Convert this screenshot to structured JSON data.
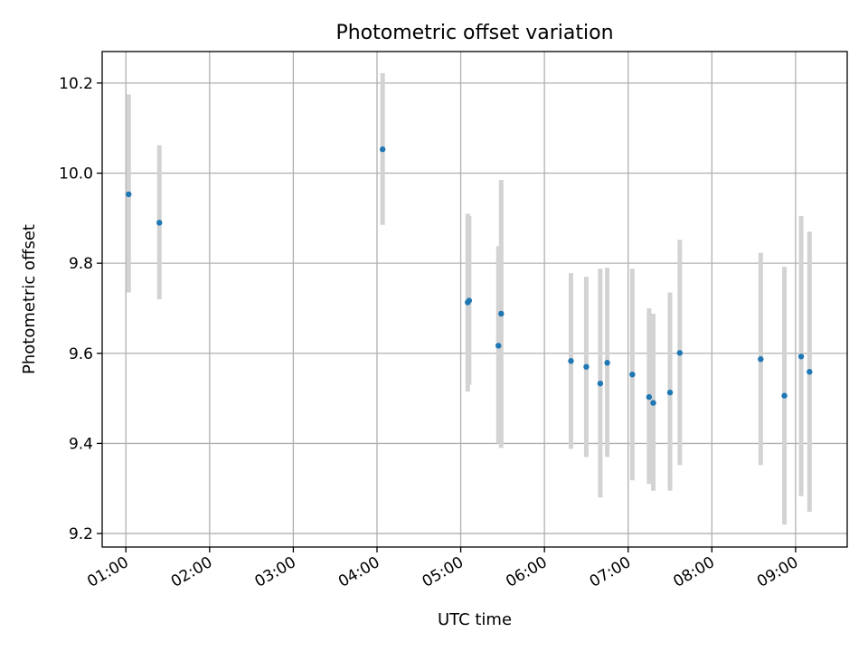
{
  "chart_data": {
    "type": "scatter",
    "title": "Photometric offset variation",
    "xlabel": "UTC time",
    "ylabel": "Photometric offset",
    "x_axis": "time",
    "xlim": [
      "00:43",
      "09:37"
    ],
    "ylim": [
      9.17,
      10.27
    ],
    "x_ticks": [
      "01:00",
      "02:00",
      "03:00",
      "04:00",
      "05:00",
      "06:00",
      "07:00",
      "08:00",
      "09:00"
    ],
    "y_ticks": [
      9.2,
      9.4,
      9.6,
      9.8,
      10.0,
      10.2
    ],
    "y_tick_labels": [
      "9.2",
      "9.4",
      "9.6",
      "9.8",
      "10.0",
      "10.2"
    ],
    "grid": true,
    "colors": {
      "points": "#1f77b4",
      "error_bars": "#d3d3d3"
    },
    "points": [
      {
        "x": "01:02",
        "y": 9.953,
        "err_low": 9.735,
        "err_high": 10.175
      },
      {
        "x": "01:24",
        "y": 9.89,
        "err_low": 9.72,
        "err_high": 10.062
      },
      {
        "x": "04:04",
        "y": 10.053,
        "err_low": 9.885,
        "err_high": 10.222
      },
      {
        "x": "05:05",
        "y": 9.713,
        "err_low": 9.515,
        "err_high": 9.91
      },
      {
        "x": "05:06",
        "y": 9.717,
        "err_low": 9.53,
        "err_high": 9.905
      },
      {
        "x": "05:27",
        "y": 9.617,
        "err_low": 9.4,
        "err_high": 9.838
      },
      {
        "x": "05:29",
        "y": 9.688,
        "err_low": 9.39,
        "err_high": 9.985
      },
      {
        "x": "06:19",
        "y": 9.583,
        "err_low": 9.388,
        "err_high": 9.778
      },
      {
        "x": "06:30",
        "y": 9.57,
        "err_low": 9.37,
        "err_high": 9.77
      },
      {
        "x": "06:40",
        "y": 9.533,
        "err_low": 9.28,
        "err_high": 9.788
      },
      {
        "x": "06:45",
        "y": 9.579,
        "err_low": 9.37,
        "err_high": 9.79
      },
      {
        "x": "07:03",
        "y": 9.553,
        "err_low": 9.318,
        "err_high": 9.788
      },
      {
        "x": "07:15",
        "y": 9.503,
        "err_low": 9.31,
        "err_high": 9.7
      },
      {
        "x": "07:18",
        "y": 9.49,
        "err_low": 9.295,
        "err_high": 9.688
      },
      {
        "x": "07:30",
        "y": 9.513,
        "err_low": 9.295,
        "err_high": 9.735
      },
      {
        "x": "07:37",
        "y": 9.601,
        "err_low": 9.352,
        "err_high": 9.852
      },
      {
        "x": "08:35",
        "y": 9.587,
        "err_low": 9.352,
        "err_high": 9.823
      },
      {
        "x": "08:52",
        "y": 9.506,
        "err_low": 9.22,
        "err_high": 9.792
      },
      {
        "x": "09:04",
        "y": 9.593,
        "err_low": 9.283,
        "err_high": 9.905
      },
      {
        "x": "09:10",
        "y": 9.559,
        "err_low": 9.248,
        "err_high": 9.87
      }
    ]
  }
}
